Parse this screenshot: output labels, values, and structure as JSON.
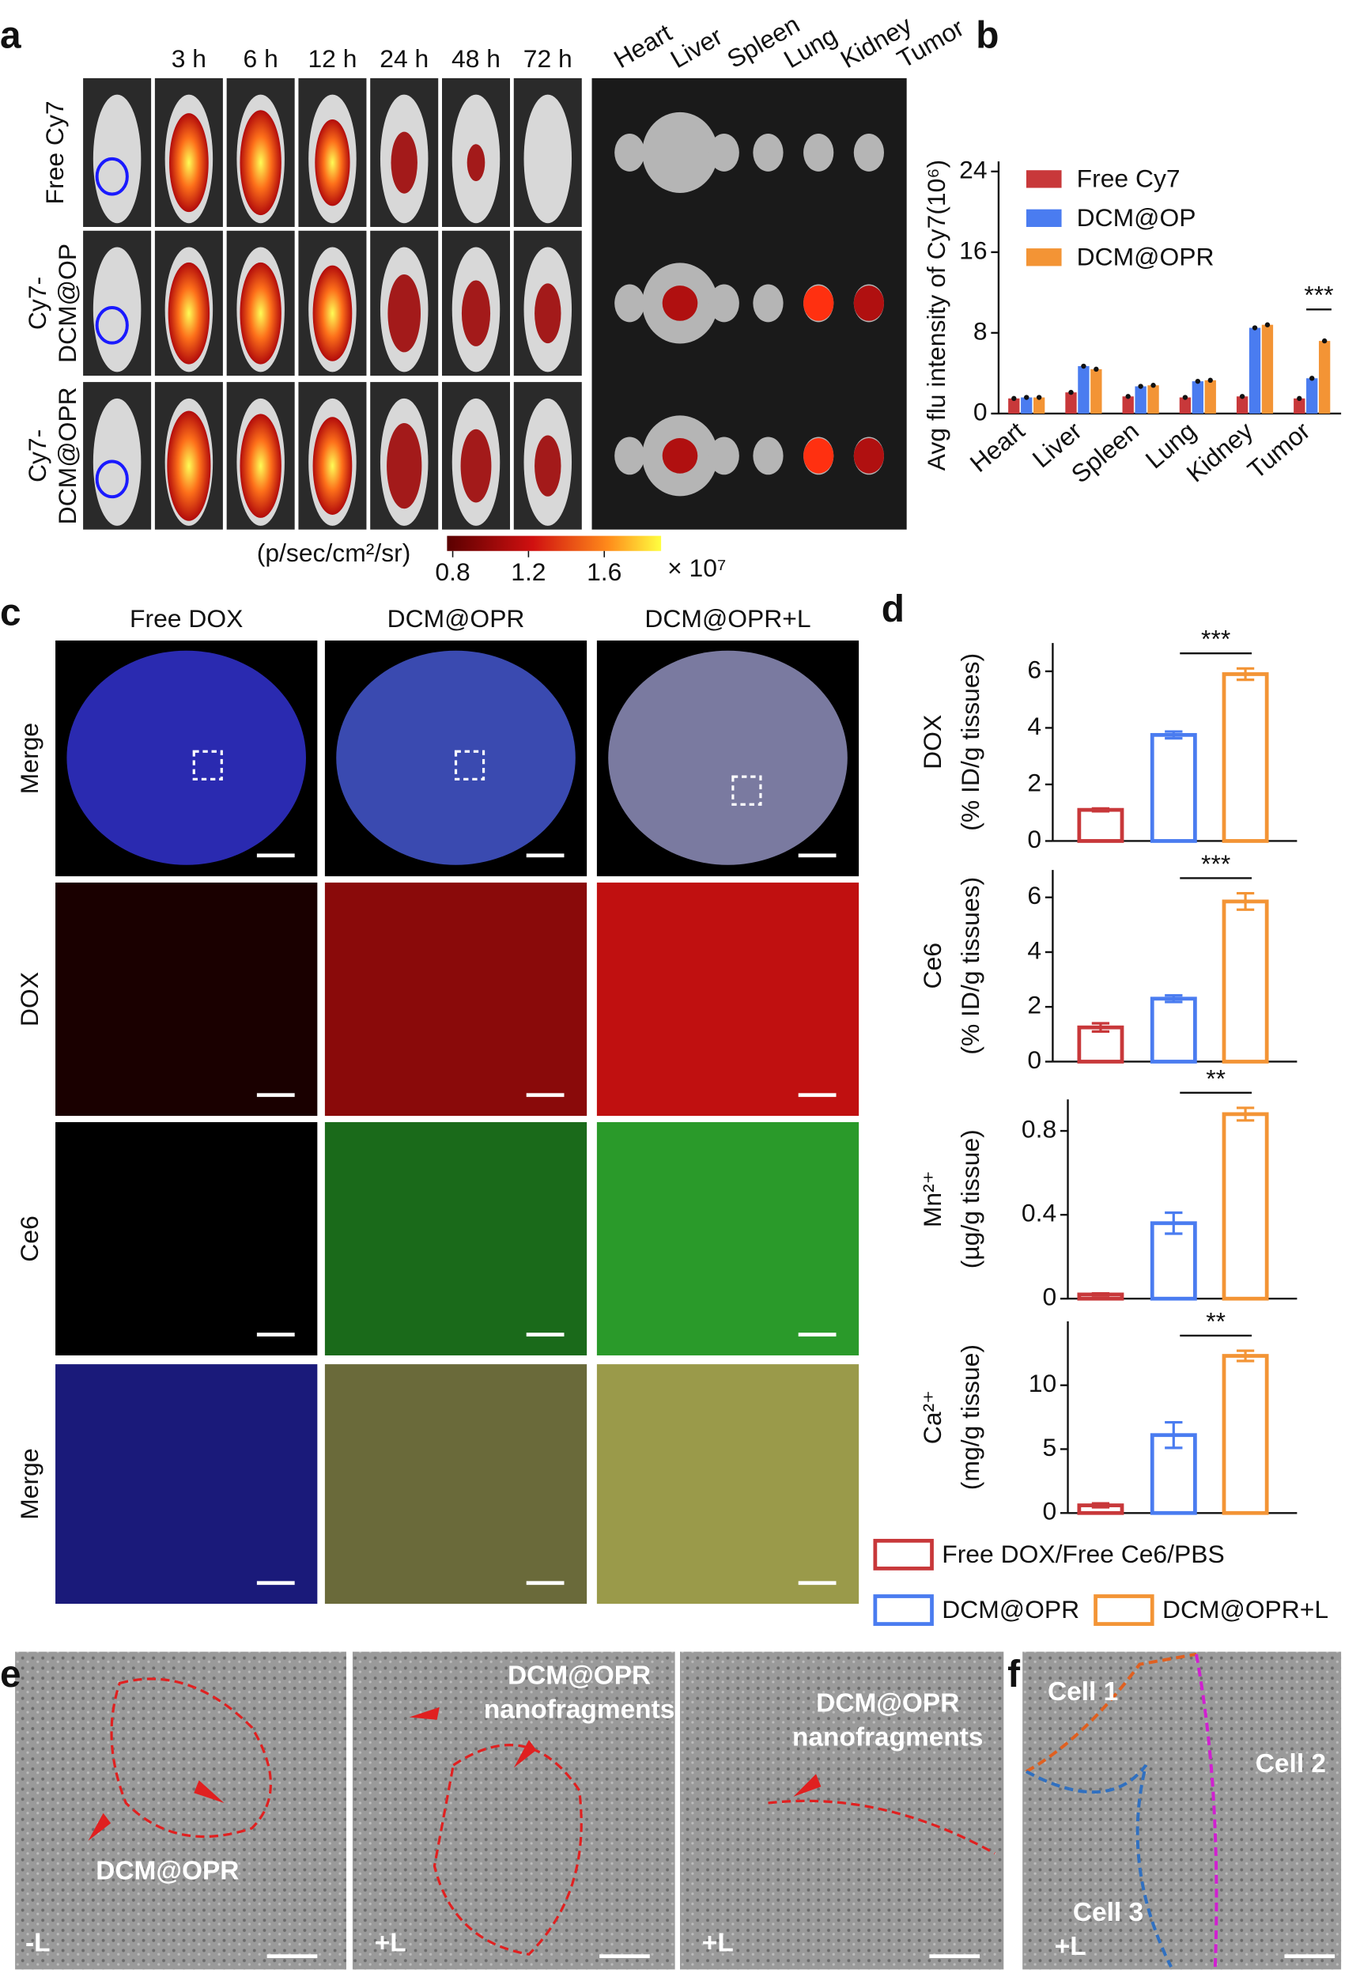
{
  "panel_labels": [
    "a",
    "b",
    "c",
    "d",
    "e",
    "f"
  ],
  "panel_a": {
    "time_labels": [
      "3 h",
      "6 h",
      "12 h",
      "24 h",
      "48 h",
      "72 h"
    ],
    "organ_labels": [
      "Heart",
      "Liver",
      "Spleen",
      "Lung",
      "Kidney",
      "Tumor"
    ],
    "row_labels": [
      [
        "Free Cy7"
      ],
      [
        "Cy7-",
        "DCM@OP"
      ],
      [
        "Cy7-",
        "DCM@OPR"
      ]
    ],
    "colorbar": {
      "unit": "(p/sec/cm²/sr)",
      "lim": [
        0.77,
        1.9
      ],
      "ticks": [
        0.8,
        1.2,
        1.6
      ],
      "multiplier": "× 10⁷"
    }
  },
  "panel_c": {
    "column_labels": [
      "Free DOX",
      "DCM@OPR",
      "DCM@OPR+L"
    ],
    "row_labels": [
      "Merge",
      "DOX",
      "Ce6",
      "Merge"
    ]
  },
  "legend_d": [
    {
      "name": "Free DOX/Free Ce6/PBS",
      "color": "#c8383a"
    },
    {
      "name": "DCM@OPR",
      "color": "#4a7cf0"
    },
    {
      "name": "DCM@OPR+L",
      "color": "#f39435"
    }
  ],
  "panel_e": {
    "labels": [
      "DCM@OPR",
      "-L",
      "+L",
      "+L"
    ],
    "nanofragments": [
      [
        "DCM@OPR",
        "nanofragments"
      ],
      [
        "DCM@OPR",
        "nanofragments"
      ]
    ]
  },
  "panel_f": {
    "labels": [
      "Cell 1",
      "Cell 2",
      "Cell 3",
      "+L"
    ]
  },
  "chart_data": [
    {
      "type": "grouped_bar",
      "ylabel": "Avg flu intensity of Cy7(10⁶)",
      "categories": [
        "Heart",
        "Liver",
        "Spleen",
        "Lung",
        "Kidney",
        "Tumor"
      ],
      "series": [
        {
          "name": "Free Cy7",
          "color": "#c8383a",
          "values": [
            1.5,
            2.1,
            1.7,
            1.6,
            1.7,
            1.5
          ]
        },
        {
          "name": "DCM@OP",
          "color": "#4a7cf0",
          "values": [
            1.6,
            4.7,
            2.7,
            3.2,
            8.5,
            3.5
          ]
        },
        {
          "name": "DCM@OPR",
          "color": "#f39435",
          "values": [
            1.6,
            4.4,
            2.8,
            3.3,
            8.8,
            7.2
          ]
        }
      ],
      "ylim": [
        0,
        25
      ],
      "yticks": [
        0,
        8,
        16,
        24
      ],
      "annotation": "***"
    },
    {
      "type": "bar",
      "ylabel": [
        "DOX",
        "(% ID/g tissues)"
      ],
      "categories": [
        null,
        null,
        null
      ],
      "values": [
        1.1,
        3.75,
        5.9
      ],
      "errors": [
        0.05,
        0.12,
        0.2
      ],
      "ylim": [
        0,
        7
      ],
      "yticks": [
        0,
        2,
        4,
        6
      ],
      "annotation": "***"
    },
    {
      "type": "bar",
      "ylabel": [
        "Ce6",
        "(% ID/g tissues)"
      ],
      "categories": [
        null,
        null,
        null
      ],
      "values": [
        1.25,
        2.3,
        5.85
      ],
      "errors": [
        0.15,
        0.12,
        0.3
      ],
      "ylim": [
        0,
        7
      ],
      "yticks": [
        0,
        2,
        4,
        6
      ],
      "annotation": "***"
    },
    {
      "type": "bar",
      "ylabel": [
        "Mn²⁺",
        "(µg/g tissue)"
      ],
      "categories": [
        null,
        null,
        null
      ],
      "values": [
        0.02,
        0.36,
        0.88
      ],
      "errors": [
        0.005,
        0.05,
        0.03
      ],
      "ylim": [
        0,
        0.95
      ],
      "yticks": [
        0,
        0.4,
        0.8
      ],
      "annotation": "**"
    },
    {
      "type": "bar",
      "ylabel": [
        "Ca²⁺",
        "(mg/g tissue)"
      ],
      "categories": [
        null,
        null,
        null
      ],
      "values": [
        0.6,
        6.1,
        12.3
      ],
      "errors": [
        0.15,
        1,
        0.4
      ],
      "ylim": [
        0,
        15
      ],
      "yticks": [
        0,
        5,
        10
      ],
      "annotation": "**"
    }
  ]
}
